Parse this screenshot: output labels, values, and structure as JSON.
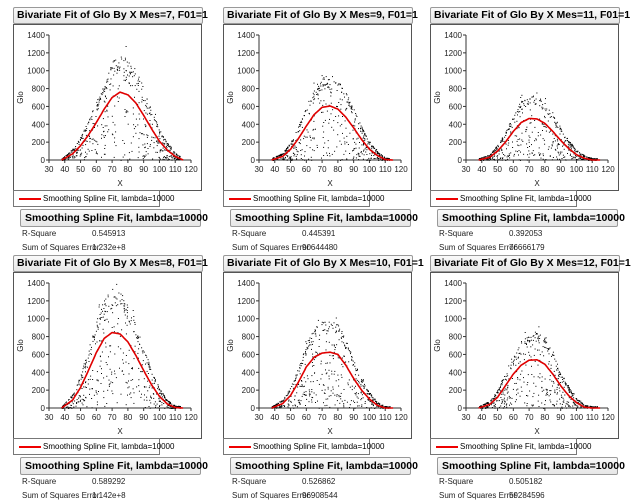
{
  "common": {
    "legend_label": "Smoothing Spline Fit, lambda=10000",
    "stats_header": "Smoothing Spline Fit, lambda=10000",
    "rsquare_label": "R-Square",
    "sse_label": "Sum of Squares Error",
    "spline_color": "#e00000",
    "point_color": "#000000"
  },
  "chart_data": [
    {
      "type": "scatter",
      "title": "Bivariate Fit of Glo By X Mes=7, F01=1",
      "xlabel": "X",
      "ylabel": "Glo",
      "xlim": [
        30,
        120
      ],
      "ylim": [
        0,
        1400
      ],
      "xticks": [
        "30",
        "40",
        "50",
        "60",
        "70",
        "80",
        "90",
        "100",
        "110",
        "120"
      ],
      "yticks": [
        "0",
        "200",
        "400",
        "600",
        "800",
        "1000",
        "1200",
        "1400"
      ],
      "rsquare": "0.545913",
      "sse": "1.232e+8",
      "spline": {
        "x": [
          38,
          45,
          50,
          55,
          60,
          65,
          70,
          75,
          80,
          85,
          90,
          95,
          100,
          105,
          110,
          115
        ],
        "y": [
          0,
          70,
          160,
          280,
          420,
          570,
          700,
          760,
          730,
          640,
          500,
          350,
          210,
          110,
          40,
          0
        ]
      }
    },
    {
      "type": "scatter",
      "title": "Bivariate Fit of Glo By X Mes=9, F01=1",
      "xlabel": "X",
      "ylabel": "Glo",
      "xlim": [
        30,
        120
      ],
      "ylim": [
        0,
        1400
      ],
      "xticks": [
        "30",
        "40",
        "50",
        "60",
        "70",
        "80",
        "90",
        "100",
        "110",
        "120"
      ],
      "yticks": [
        "0",
        "200",
        "400",
        "600",
        "800",
        "1000",
        "1200",
        "1400"
      ],
      "rsquare": "0.445391",
      "sse": "90644480",
      "spline": {
        "x": [
          38,
          45,
          50,
          55,
          60,
          65,
          70,
          75,
          80,
          85,
          90,
          95,
          100,
          105,
          110,
          115
        ],
        "y": [
          0,
          40,
          120,
          240,
          380,
          510,
          590,
          605,
          570,
          480,
          360,
          230,
          120,
          50,
          5,
          0
        ]
      }
    },
    {
      "type": "scatter",
      "title": "Bivariate Fit of Glo By X Mes=11, F01=1",
      "xlabel": "X",
      "ylabel": "Glo",
      "xlim": [
        30,
        120
      ],
      "ylim": [
        0,
        1400
      ],
      "xticks": [
        "30",
        "40",
        "50",
        "60",
        "70",
        "80",
        "90",
        "100",
        "110",
        "120"
      ],
      "yticks": [
        "0",
        "200",
        "400",
        "600",
        "800",
        "1000",
        "1200",
        "1400"
      ],
      "rsquare": "0.392053",
      "sse": "76666179",
      "spline": {
        "x": [
          38,
          45,
          50,
          55,
          60,
          65,
          70,
          75,
          80,
          85,
          90,
          95,
          100,
          105,
          110,
          115
        ],
        "y": [
          0,
          30,
          100,
          200,
          320,
          420,
          465,
          460,
          410,
          320,
          220,
          130,
          60,
          20,
          0,
          0
        ]
      }
    },
    {
      "type": "scatter",
      "title": "Bivariate Fit of Glo By X Mes=8, F01=1",
      "xlabel": "X",
      "ylabel": "Glo",
      "xlim": [
        30,
        120
      ],
      "ylim": [
        0,
        1400
      ],
      "xticks": [
        "30",
        "40",
        "50",
        "60",
        "70",
        "80",
        "90",
        "100",
        "110",
        "120"
      ],
      "yticks": [
        "0",
        "200",
        "400",
        "600",
        "800",
        "1000",
        "1200",
        "1400"
      ],
      "rsquare": "0.589292",
      "sse": "1.142e+8",
      "spline": {
        "x": [
          38,
          45,
          50,
          55,
          60,
          65,
          70,
          75,
          80,
          85,
          90,
          95,
          100,
          105,
          110,
          115
        ],
        "y": [
          0,
          90,
          230,
          420,
          620,
          780,
          845,
          830,
          740,
          590,
          420,
          260,
          130,
          45,
          5,
          0
        ]
      }
    },
    {
      "type": "scatter",
      "title": "Bivariate Fit of Glo By X Mes=10, F01=1",
      "xlabel": "X",
      "ylabel": "Glo",
      "xlim": [
        30,
        120
      ],
      "ylim": [
        0,
        1400
      ],
      "xticks": [
        "30",
        "40",
        "50",
        "60",
        "70",
        "80",
        "90",
        "100",
        "110",
        "120"
      ],
      "yticks": [
        "0",
        "200",
        "400",
        "600",
        "800",
        "1000",
        "1200",
        "1400"
      ],
      "rsquare": "0.526862",
      "sse": "96908544",
      "spline": {
        "x": [
          38,
          45,
          50,
          55,
          60,
          65,
          70,
          75,
          80,
          85,
          90,
          95,
          100,
          105,
          110,
          115
        ],
        "y": [
          0,
          50,
          140,
          290,
          460,
          570,
          615,
          625,
          600,
          480,
          330,
          200,
          100,
          30,
          0,
          0
        ]
      }
    },
    {
      "type": "scatter",
      "title": "Bivariate Fit of Glo By X Mes=12, F01=1",
      "xlabel": "X",
      "ylabel": "Glo",
      "xlim": [
        30,
        120
      ],
      "ylim": [
        0,
        1400
      ],
      "xticks": [
        "30",
        "40",
        "50",
        "60",
        "70",
        "80",
        "90",
        "100",
        "110",
        "120"
      ],
      "yticks": [
        "0",
        "200",
        "400",
        "600",
        "800",
        "1000",
        "1200",
        "1400"
      ],
      "rsquare": "0.505182",
      "sse": "59284596",
      "spline": {
        "x": [
          38,
          45,
          50,
          55,
          60,
          65,
          70,
          75,
          80,
          85,
          90,
          95,
          100,
          105,
          110,
          115
        ],
        "y": [
          0,
          40,
          120,
          250,
          380,
          480,
          535,
          540,
          490,
          380,
          250,
          140,
          60,
          10,
          0,
          0
        ]
      }
    }
  ]
}
